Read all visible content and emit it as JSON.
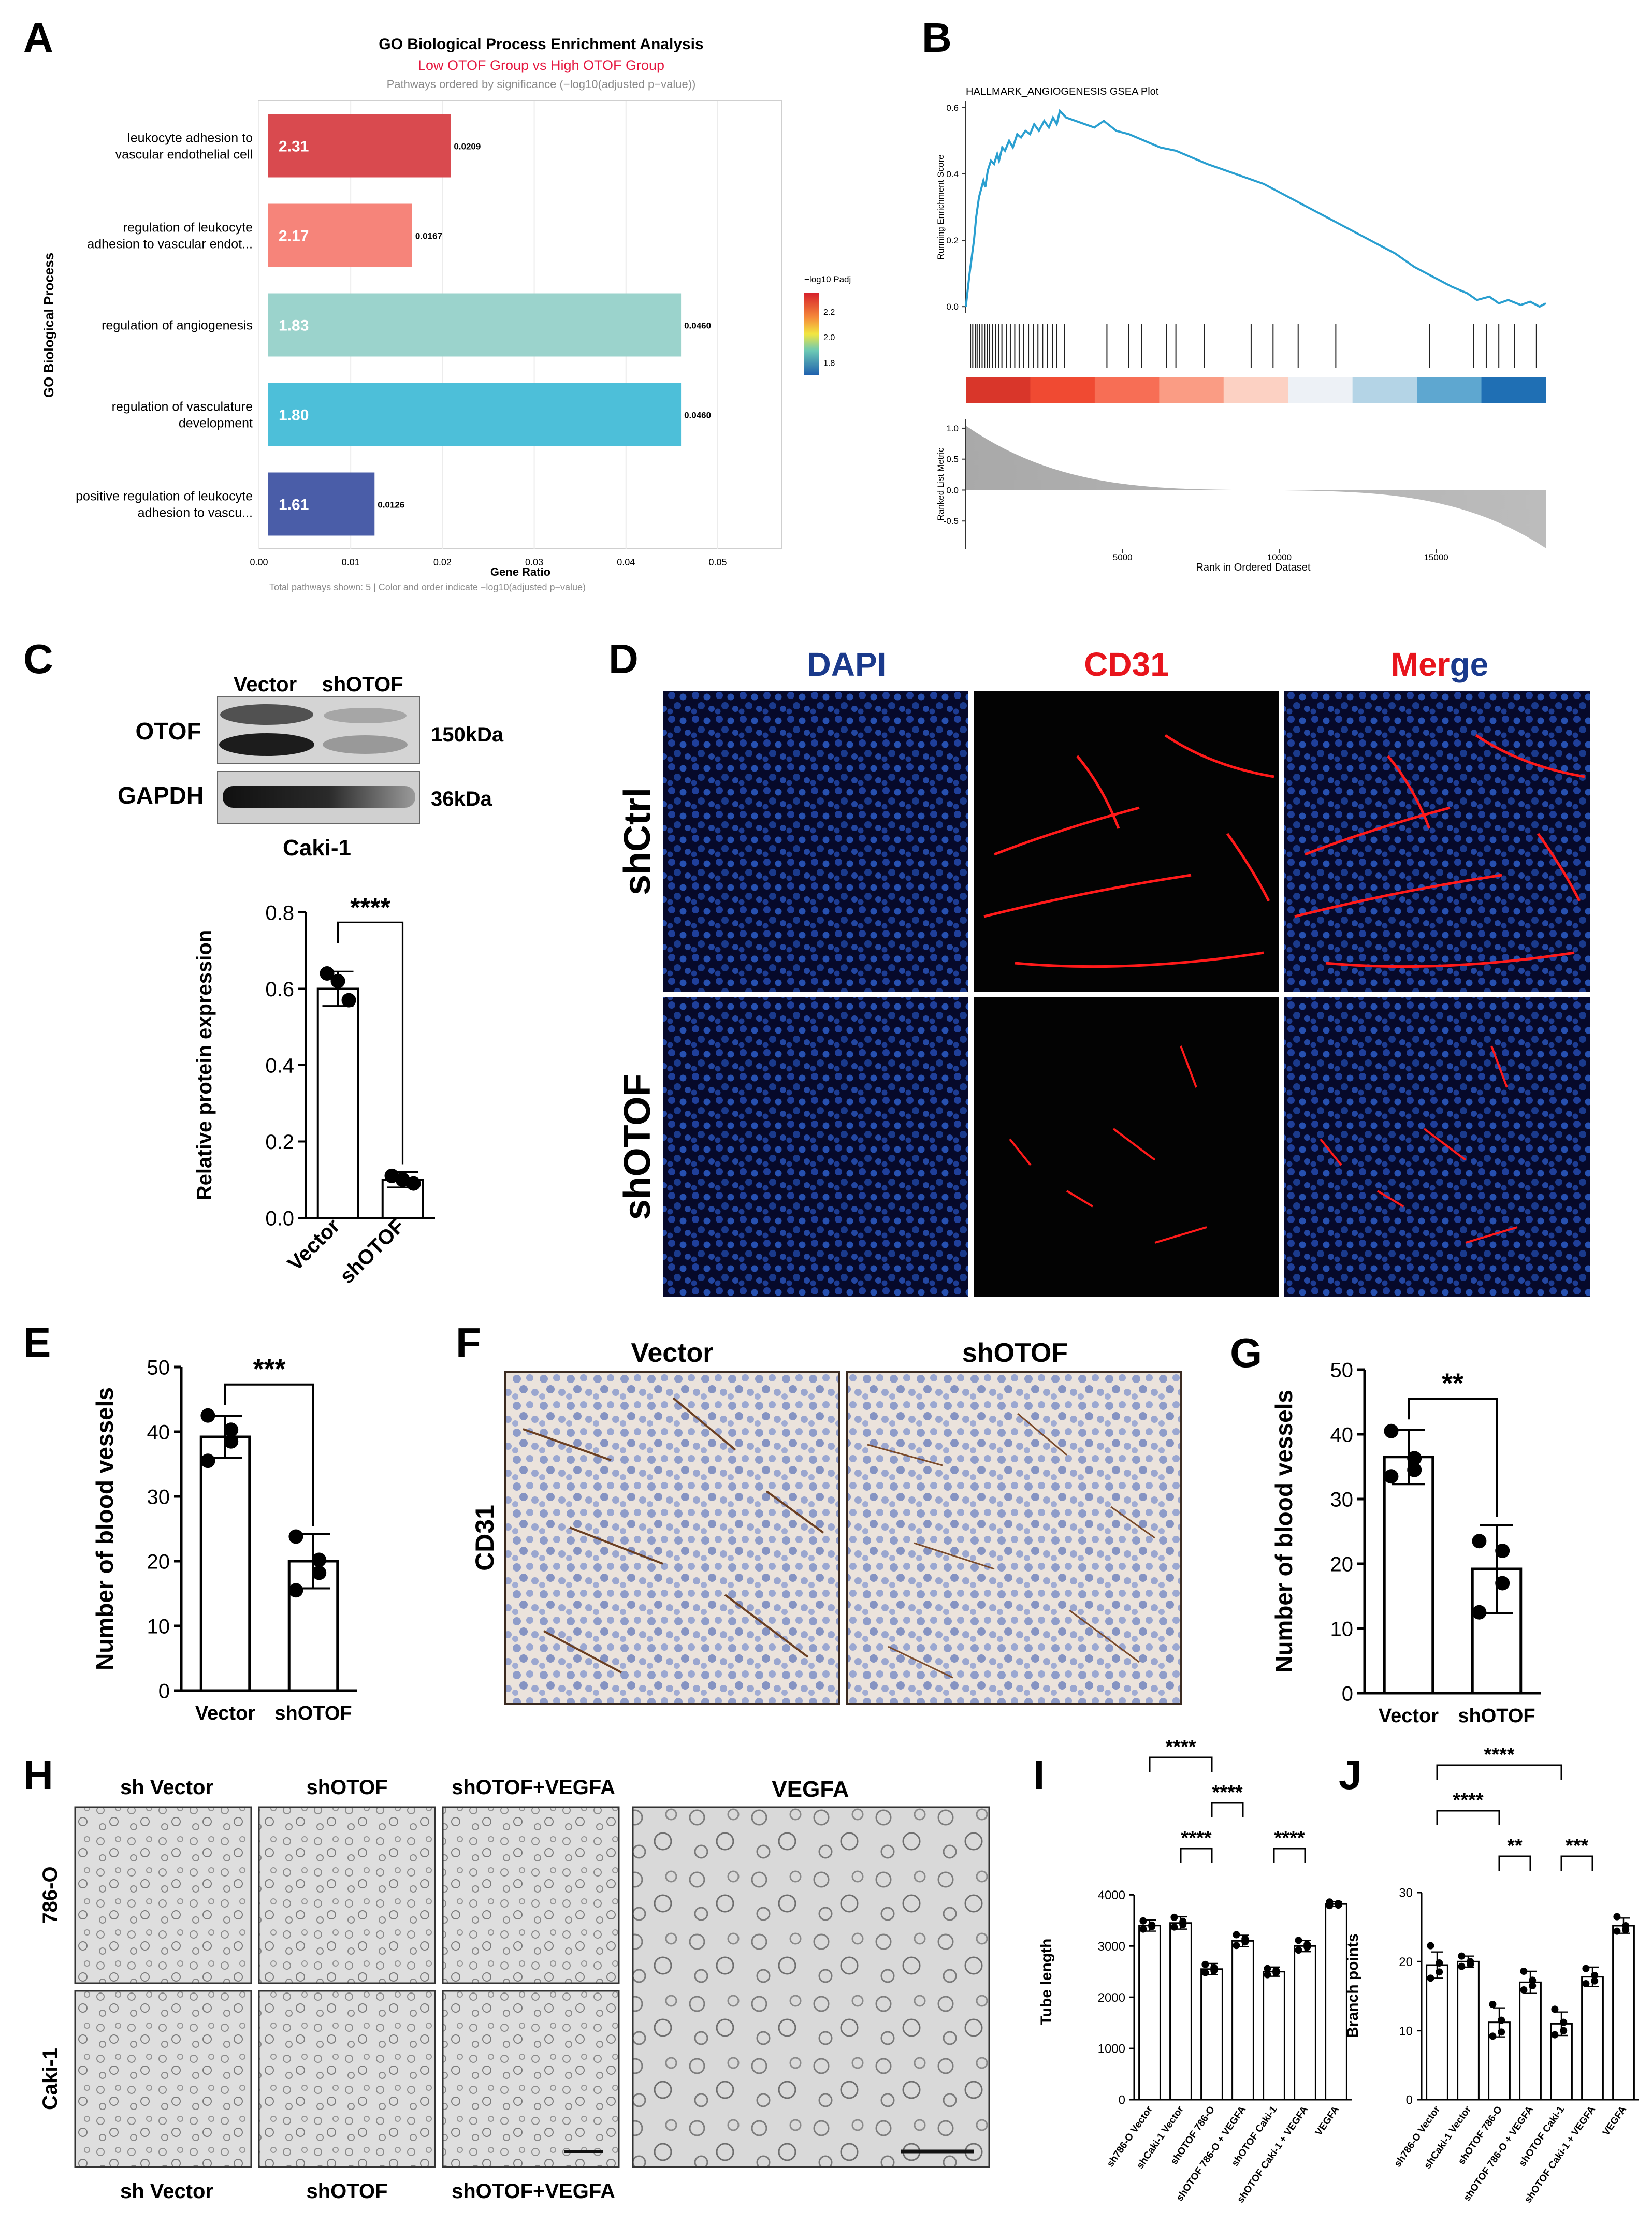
{
  "panels": {
    "A": "A",
    "B": "B",
    "C": "C",
    "D": "D",
    "E": "E",
    "F": "F",
    "G": "G",
    "H": "H",
    "I": "I",
    "J": "J"
  },
  "colors": {
    "go_bars": [
      "#d94a4f",
      "#f6847a",
      "#9bd3cc",
      "#4dbfd9",
      "#4a5da8"
    ],
    "gsea_line": "#2a9fd0",
    "dapi": "#1a3a8c",
    "cd31": "#e8141c",
    "tissue": "#f2ede7"
  },
  "chart_data": [
    {
      "id": "A",
      "type": "bar",
      "orientation": "horizontal",
      "title": "GO Biological Process Enrichment Analysis",
      "subtitle": "Low OTOF Group vs High OTOF Group",
      "note": "Pathways ordered by significance (−log10(adjusted p−value))",
      "caption": "Total pathways shown: 5 | Color and order indicate −log10(adjusted p−value)",
      "xlabel": "Gene Ratio",
      "ylabel": "GO Biological Process",
      "xlim": [
        0,
        0.057
      ],
      "xticks": [
        "0.00",
        "0.01",
        "0.02",
        "0.03",
        "0.04",
        "0.05"
      ],
      "categories": [
        [
          "leukocyte adhesion to",
          "vascular endothelial cell"
        ],
        [
          "regulation of leukocyte",
          "adhesion to vascular endot..."
        ],
        [
          "regulation of angiogenesis"
        ],
        [
          "regulation of vasculature",
          "development"
        ],
        [
          "positive regulation of leukocyte",
          "adhesion to vascu..."
        ]
      ],
      "values": [
        0.0209,
        0.0167,
        0.046,
        0.046,
        0.0126
      ],
      "value_labels": [
        "0.0209",
        "0.0167",
        "0.0460",
        "0.0460",
        "0.0126"
      ],
      "neglog10_padj": [
        "2.31",
        "2.17",
        "1.83",
        "1.80",
        "1.61"
      ],
      "legend_title": "−log10 Padj",
      "legend_ticks": [
        "2.2",
        "2.0",
        "1.8"
      ],
      "legend_range": [
        1.7,
        2.35
      ],
      "grid": true
    },
    {
      "id": "B",
      "type": "line",
      "title": "HALLMARK_ANGIOGENESIS GSEA Plot",
      "ylabel": "Running Enrichment Score",
      "yticks": [
        "0.6",
        "0.4",
        "0.2",
        "0.0"
      ],
      "ylim": [
        -0.02,
        0.62
      ],
      "xlim": [
        0,
        18500
      ],
      "series": [
        {
          "x": [
            0,
            120,
            260,
            330,
            420,
            560,
            620,
            700,
            800,
            900,
            1000,
            1060,
            1160,
            1250,
            1380,
            1500,
            1640,
            1760,
            1900,
            2050,
            2180,
            2330,
            2500,
            2650,
            2780,
            2900,
            3000,
            3200,
            3500,
            3800,
            4100,
            4400,
            4800,
            5200,
            5700,
            6200,
            6700,
            7200,
            7700,
            8300,
            8900,
            9500,
            10100,
            10700,
            11300,
            11900,
            12500,
            13100,
            13700,
            14300,
            14900,
            15500,
            16000,
            16300,
            16700,
            17000,
            17300,
            17700,
            18000,
            18300,
            18500
          ],
          "y": [
            0.0,
            0.1,
            0.2,
            0.27,
            0.33,
            0.38,
            0.36,
            0.41,
            0.44,
            0.43,
            0.46,
            0.44,
            0.48,
            0.47,
            0.5,
            0.48,
            0.52,
            0.51,
            0.53,
            0.52,
            0.55,
            0.53,
            0.56,
            0.54,
            0.57,
            0.55,
            0.59,
            0.57,
            0.56,
            0.55,
            0.54,
            0.56,
            0.53,
            0.52,
            0.5,
            0.48,
            0.47,
            0.45,
            0.43,
            0.41,
            0.39,
            0.37,
            0.34,
            0.31,
            0.28,
            0.25,
            0.22,
            0.19,
            0.16,
            0.12,
            0.09,
            0.06,
            0.04,
            0.02,
            0.03,
            0.01,
            0.02,
            0.005,
            0.015,
            0.0,
            0.01
          ]
        }
      ],
      "hits": [
        150,
        220,
        300,
        360,
        430,
        520,
        600,
        680,
        760,
        850,
        950,
        1050,
        1150,
        1300,
        1420,
        1560,
        1700,
        1850,
        2000,
        2150,
        2300,
        2450,
        2600,
        2760,
        2900,
        3150,
        4500,
        5200,
        5600,
        6400,
        6700,
        7600,
        9100,
        9800,
        10600,
        11800,
        14800,
        16200,
        16600,
        17000,
        17500,
        18200
      ],
      "heatmap_colors": [
        "#d9362a",
        "#f04a32",
        "#f76e55",
        "#fa9c84",
        "#fcd1c3",
        "#edf1f6",
        "#b4d4e6",
        "#5ea7d0",
        "#1f6fb4"
      ],
      "ranked_ylabel": "Ranked List Metric",
      "ranked_yticks": [
        "1.0",
        "0.5",
        "0.0",
        "-0.5"
      ],
      "ranked_ylim": [
        -0.95,
        1.1
      ],
      "xlabel": "Rank in Ordered Dataset",
      "xticks": [
        "5000",
        "10000",
        "15000"
      ],
      "xtick_values": [
        5000,
        10000,
        15000
      ]
    },
    {
      "id": "C",
      "type": "bar",
      "ylabel": "Relative protein expression",
      "categories": [
        "Vector",
        "shOTOF"
      ],
      "values": [
        0.6,
        0.1
      ],
      "errors": [
        0.045,
        0.02
      ],
      "points": [
        [
          0.64,
          0.62,
          0.57
        ],
        [
          0.11,
          0.1,
          0.09
        ]
      ],
      "ylim": [
        0,
        0.8
      ],
      "yticks": [
        "0.0",
        "0.2",
        "0.4",
        "0.6",
        "0.8"
      ],
      "ytick_values": [
        0,
        0.2,
        0.4,
        0.6,
        0.8
      ],
      "significance": "****"
    },
    {
      "id": "E",
      "type": "bar",
      "ylabel": "Number of blood vessels",
      "categories": [
        "Vector",
        "shOTOF"
      ],
      "values": [
        39.2,
        20.0
      ],
      "errors": [
        3.2,
        4.2
      ],
      "points": [
        [
          42.5,
          40.3,
          38.5,
          35.5
        ],
        [
          23.8,
          20.2,
          18.2,
          15.5
        ]
      ],
      "ylim": [
        0,
        50
      ],
      "yticks": [
        "0",
        "10",
        "20",
        "30",
        "40",
        "50"
      ],
      "ytick_values": [
        0,
        10,
        20,
        30,
        40,
        50
      ],
      "significance": "***"
    },
    {
      "id": "G",
      "type": "bar",
      "ylabel": "Number of blood vessels",
      "categories": [
        "Vector",
        "shOTOF"
      ],
      "values": [
        36.5,
        19.2
      ],
      "errors": [
        4.2,
        6.8
      ],
      "points": [
        [
          40.5,
          36.3,
          34.5,
          33.5
        ],
        [
          23.5,
          22.0,
          17.0,
          12.5
        ]
      ],
      "ylim": [
        0,
        50
      ],
      "yticks": [
        "0",
        "10",
        "20",
        "30",
        "40",
        "50"
      ],
      "ytick_values": [
        0,
        10,
        20,
        30,
        40,
        50
      ],
      "significance": "**"
    },
    {
      "id": "I",
      "type": "bar",
      "ylabel": "Tube length",
      "categories": [
        "sh786-O Vector",
        "shCaki-1 Vector",
        "shOTOF 786-O",
        "shOTOF 786-O + VEGFA",
        "shOTOF Caki-1",
        "shOTOF Caki-1 + VEGFA",
        "VEGFA"
      ],
      "values": [
        3400,
        3450,
        2550,
        3100,
        2500,
        3000,
        3820
      ],
      "errors": [
        110,
        120,
        110,
        110,
        90,
        110,
        45
      ],
      "points": [
        [
          3490,
          3410,
          3380,
          3330
        ],
        [
          3560,
          3480,
          3420,
          3370
        ],
        [
          2640,
          2580,
          2520,
          2480
        ],
        [
          3220,
          3140,
          3080,
          3010
        ],
        [
          2560,
          2520,
          2480,
          2440
        ],
        [
          3110,
          3030,
          2980,
          2920
        ],
        [
          3860,
          3830,
          3800,
          3790
        ]
      ],
      "ylim": [
        0,
        4600
      ],
      "yticks": [
        "0",
        "1000",
        "2000",
        "3000",
        "4000"
      ],
      "ytick_values": [
        0,
        1000,
        2000,
        3000,
        4000
      ],
      "brackets": [
        {
          "from": 0,
          "to": 2,
          "label": "****",
          "level": 3
        },
        {
          "from": 2,
          "to": 3,
          "label": "****",
          "level": 2
        },
        {
          "from": 1,
          "to": 2,
          "label": "****",
          "level": 1
        },
        {
          "from": 4,
          "to": 5,
          "label": "****",
          "level": 1
        }
      ]
    },
    {
      "id": "J",
      "type": "bar",
      "ylabel": "Branch points",
      "categories": [
        "sh786-O Vector",
        "shCaki-1 Vector",
        "shOTOF 786-O",
        "shOTOF 786-O + VEGFA",
        "shOTOF Caki-1",
        "shOTOF Caki-1 + VEGFA",
        "VEGFA"
      ],
      "values": [
        19.5,
        20.0,
        11.2,
        17.0,
        11.0,
        17.8,
        25.2
      ],
      "errors": [
        1.9,
        0.8,
        2.1,
        1.6,
        1.7,
        1.4,
        1.1
      ],
      "points": [
        [
          22.3,
          19.8,
          18.5,
          17.6
        ],
        [
          20.8,
          20.0,
          19.6,
          19.3
        ],
        [
          13.8,
          11.5,
          9.8,
          9.2
        ],
        [
          18.6,
          17.3,
          16.5,
          15.9
        ],
        [
          13.1,
          11.2,
          10.0,
          9.4
        ],
        [
          19.0,
          18.0,
          17.2,
          16.8
        ],
        [
          26.5,
          25.2,
          24.6,
          24.4
        ]
      ],
      "ylim": [
        0,
        33
      ],
      "yticks": [
        "0",
        "10",
        "20",
        "30"
      ],
      "ytick_values": [
        0,
        10,
        20,
        30
      ],
      "brackets": [
        {
          "from": 0,
          "to": 4,
          "label": "****",
          "level": 3
        },
        {
          "from": 0,
          "to": 2,
          "label": "****",
          "level": 2
        },
        {
          "from": 2,
          "to": 3,
          "label": "**",
          "level": 1
        },
        {
          "from": 4,
          "to": 5,
          "label": "***",
          "level": 1
        }
      ]
    }
  ],
  "blot": {
    "lanes": [
      "Vector",
      "shOTOF"
    ],
    "bands": [
      {
        "label": "OTOF",
        "size": "150kDa"
      },
      {
        "label": "GAPDH",
        "size": "36kDa"
      }
    ],
    "cell_line": "Caki-1"
  },
  "panel_d": {
    "columns": [
      "DAPI",
      "CD31",
      "Merge"
    ],
    "merge_parts": [
      "Mer",
      "ge"
    ],
    "rows": [
      "shCtrl",
      "shOTOF"
    ]
  },
  "panel_f": {
    "columns": [
      "Vector",
      "shOTOF"
    ],
    "row_label": "CD31"
  },
  "panel_h": {
    "top_labels": [
      "sh Vector",
      "shOTOF",
      "shOTOF+VEGFA"
    ],
    "bottom_labels": [
      "sh Vector",
      "shOTOF",
      "shOTOF+VEGFA"
    ],
    "rows": [
      "786-O",
      "Caki-1"
    ],
    "large_label": "VEGFA"
  }
}
